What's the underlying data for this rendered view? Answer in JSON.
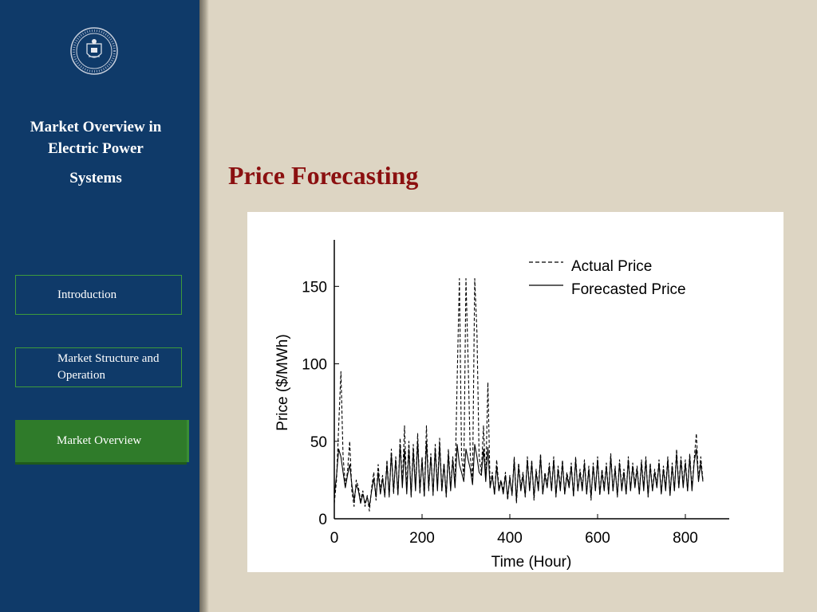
{
  "sidebar": {
    "title_line1": "Market Overview in",
    "title_line2": "Electric Power",
    "title_line3": "Systems",
    "nav": [
      {
        "label": "Introduction"
      },
      {
        "label": "Market Structure and Operation"
      },
      {
        "label": "Market Overview",
        "active": true
      }
    ]
  },
  "main": {
    "title": "Price Forecasting"
  },
  "colors": {
    "sidebar_bg": "#0f3a69",
    "page_bg": "#ddd5c3",
    "title": "#8b1010",
    "nav_active": "#2f7b2a",
    "nav_border": "#3e9a3c"
  },
  "icons": {
    "logo": "university-seal-icon"
  },
  "chart_data": {
    "type": "line",
    "title": "",
    "xlabel": "Time (Hour)",
    "ylabel": "Price ($/MWh)",
    "xlim": [
      0,
      900
    ],
    "ylim": [
      0,
      180
    ],
    "xticks": [
      0,
      200,
      400,
      600,
      800
    ],
    "yticks": [
      0,
      50,
      100,
      150
    ],
    "legend_position": "top-right",
    "grid": false,
    "series": [
      {
        "name": "Actual Price",
        "style": "dashed",
        "x": [
          0,
          5,
          10,
          15,
          20,
          25,
          30,
          35,
          40,
          45,
          50,
          55,
          60,
          65,
          70,
          75,
          80,
          85,
          90,
          95,
          100,
          105,
          110,
          115,
          120,
          125,
          130,
          135,
          140,
          145,
          150,
          155,
          160,
          165,
          170,
          175,
          180,
          185,
          190,
          195,
          200,
          205,
          210,
          215,
          220,
          225,
          230,
          235,
          240,
          245,
          250,
          255,
          260,
          265,
          270,
          275,
          280,
          285,
          290,
          295,
          300,
          305,
          310,
          315,
          320,
          325,
          330,
          335,
          340,
          345,
          350,
          355,
          360,
          365,
          370,
          375,
          380,
          385,
          390,
          395,
          400,
          405,
          410,
          415,
          420,
          425,
          430,
          435,
          440,
          445,
          450,
          455,
          460,
          465,
          470,
          475,
          480,
          485,
          490,
          495,
          500,
          505,
          510,
          515,
          520,
          525,
          530,
          535,
          540,
          545,
          550,
          555,
          560,
          565,
          570,
          575,
          580,
          585,
          590,
          595,
          600,
          605,
          610,
          615,
          620,
          625,
          630,
          635,
          640,
          645,
          650,
          655,
          660,
          665,
          670,
          675,
          680,
          685,
          690,
          695,
          700,
          705,
          710,
          715,
          720,
          725,
          730,
          735,
          740,
          745,
          750,
          755,
          760,
          765,
          770,
          775,
          780,
          785,
          790,
          795,
          800,
          805,
          810,
          815,
          820,
          825,
          830,
          835,
          840
        ],
        "values": [
          10,
          25,
          60,
          95,
          40,
          22,
          30,
          50,
          18,
          8,
          25,
          20,
          12,
          18,
          8,
          15,
          5,
          20,
          30,
          12,
          35,
          18,
          28,
          14,
          38,
          14,
          45,
          16,
          40,
          15,
          52,
          22,
          60,
          18,
          50,
          14,
          48,
          20,
          55,
          16,
          40,
          14,
          60,
          18,
          42,
          15,
          48,
          20,
          52,
          18,
          36,
          14,
          45,
          20,
          40,
          22,
          90,
          155,
          40,
          28,
          155,
          100,
          40,
          25,
          155,
          120,
          40,
          30,
          60,
          25,
          88,
          20,
          30,
          15,
          38,
          20,
          25,
          18,
          30,
          12,
          28,
          15,
          40,
          10,
          36,
          20,
          30,
          14,
          40,
          18,
          38,
          12,
          32,
          20,
          42,
          16,
          30,
          22,
          36,
          18,
          40,
          14,
          34,
          20,
          38,
          16,
          30,
          22,
          36,
          14,
          40,
          18,
          32,
          20,
          38,
          16,
          34,
          12,
          36,
          18,
          40,
          15,
          32,
          20,
          36,
          16,
          42,
          18,
          34,
          14,
          38,
          20,
          32,
          16,
          40,
          18,
          36,
          22,
          34,
          16,
          38,
          20,
          40,
          14,
          36,
          18,
          32,
          22,
          38,
          16,
          34,
          20,
          40,
          15,
          36,
          18,
          45,
          20,
          40,
          22,
          38,
          18,
          42,
          20,
          38,
          55,
          25,
          40,
          25
        ]
      },
      {
        "name": "Forecasted Price",
        "style": "solid",
        "x": [
          0,
          5,
          10,
          15,
          20,
          25,
          30,
          35,
          40,
          45,
          50,
          55,
          60,
          65,
          70,
          75,
          80,
          85,
          90,
          95,
          100,
          105,
          110,
          115,
          120,
          125,
          130,
          135,
          140,
          145,
          150,
          155,
          160,
          165,
          170,
          175,
          180,
          185,
          190,
          195,
          200,
          205,
          210,
          215,
          220,
          225,
          230,
          235,
          240,
          245,
          250,
          255,
          260,
          265,
          270,
          275,
          280,
          285,
          290,
          295,
          300,
          305,
          310,
          315,
          320,
          325,
          330,
          335,
          340,
          345,
          350,
          355,
          360,
          365,
          370,
          375,
          380,
          385,
          390,
          395,
          400,
          405,
          410,
          415,
          420,
          425,
          430,
          435,
          440,
          445,
          450,
          455,
          460,
          465,
          470,
          475,
          480,
          485,
          490,
          495,
          500,
          505,
          510,
          515,
          520,
          525,
          530,
          535,
          540,
          545,
          550,
          555,
          560,
          565,
          570,
          575,
          580,
          585,
          590,
          595,
          600,
          605,
          610,
          615,
          620,
          625,
          630,
          635,
          640,
          645,
          650,
          655,
          660,
          665,
          670,
          675,
          680,
          685,
          690,
          695,
          700,
          705,
          710,
          715,
          720,
          725,
          730,
          735,
          740,
          745,
          750,
          755,
          760,
          765,
          770,
          775,
          780,
          785,
          790,
          795,
          800,
          805,
          810,
          815,
          820,
          825,
          830,
          835,
          840
        ],
        "values": [
          15,
          28,
          45,
          40,
          30,
          20,
          28,
          35,
          22,
          12,
          22,
          18,
          10,
          16,
          10,
          14,
          8,
          18,
          26,
          14,
          30,
          16,
          26,
          15,
          35,
          15,
          42,
          18,
          38,
          16,
          48,
          20,
          45,
          16,
          45,
          15,
          44,
          18,
          50,
          18,
          38,
          15,
          50,
          20,
          40,
          16,
          45,
          18,
          48,
          18,
          35,
          15,
          42,
          18,
          38,
          20,
          48,
          35,
          30,
          24,
          45,
          38,
          32,
          22,
          48,
          40,
          30,
          28,
          45,
          24,
          46,
          20,
          28,
          16,
          34,
          18,
          24,
          16,
          28,
          14,
          26,
          16,
          38,
          12,
          34,
          18,
          28,
          15,
          38,
          18,
          36,
          14,
          30,
          18,
          40,
          16,
          28,
          20,
          34,
          18,
          38,
          15,
          32,
          18,
          36,
          16,
          28,
          20,
          34,
          15,
          38,
          18,
          30,
          18,
          36,
          16,
          32,
          14,
          34,
          18,
          38,
          16,
          30,
          18,
          34,
          16,
          40,
          18,
          32,
          15,
          36,
          18,
          30,
          16,
          38,
          18,
          34,
          20,
          32,
          16,
          36,
          18,
          38,
          15,
          34,
          18,
          30,
          20,
          36,
          16,
          32,
          18,
          38,
          15,
          34,
          18,
          42,
          20,
          38,
          20,
          36,
          18,
          40,
          18,
          36,
          45,
          24,
          36,
          24
        ]
      }
    ]
  }
}
